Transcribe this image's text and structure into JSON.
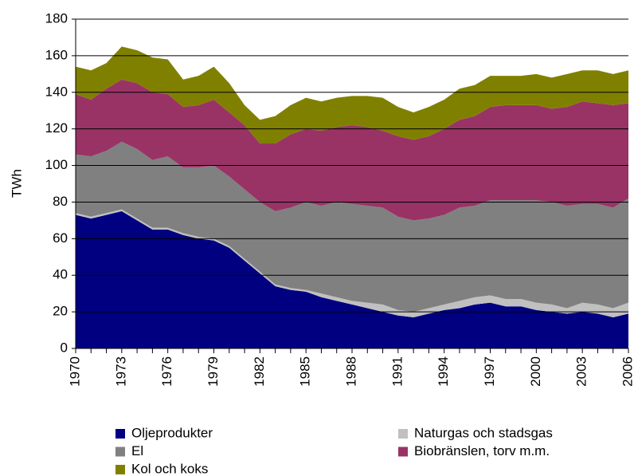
{
  "chart_data": {
    "type": "stacked-area",
    "y_label": "TWh",
    "x": [
      1970,
      1971,
      1972,
      1973,
      1974,
      1975,
      1976,
      1977,
      1978,
      1979,
      1980,
      1981,
      1982,
      1983,
      1984,
      1985,
      1986,
      1987,
      1988,
      1989,
      1990,
      1991,
      1992,
      1993,
      1994,
      1995,
      1996,
      1997,
      1998,
      1999,
      2000,
      2001,
      2002,
      2003,
      2004,
      2005,
      2006
    ],
    "xlim": [
      1970,
      2006
    ],
    "xticks": [
      1970,
      1973,
      1976,
      1979,
      1982,
      1985,
      1988,
      1991,
      1994,
      1997,
      2000,
      2003,
      2006
    ],
    "ylim": [
      0,
      180
    ],
    "yticks": [
      0,
      20,
      40,
      60,
      80,
      100,
      120,
      140,
      160,
      180
    ],
    "grid": true,
    "series": [
      {
        "name": "Oljeprodukter",
        "color": "#000080",
        "values": [
          73,
          71,
          73,
          75,
          70,
          65,
          65,
          62,
          60,
          59,
          55,
          48,
          41,
          34,
          32,
          31,
          28,
          26,
          24,
          22,
          20,
          18,
          17,
          19,
          21,
          22,
          24,
          25,
          23,
          23,
          21,
          20,
          19,
          20,
          19,
          17,
          19
        ]
      },
      {
        "name": "Naturgas och stadsgas",
        "color": "#c0c0c0",
        "values": [
          1,
          1,
          1,
          1,
          1,
          1,
          1,
          1,
          1,
          1,
          1,
          1,
          1,
          1,
          1,
          1,
          2,
          2,
          2,
          3,
          4,
          3,
          3,
          3,
          3,
          4,
          4,
          4,
          4,
          4,
          4,
          4,
          3,
          5,
          5,
          5,
          6
        ]
      },
      {
        "name": "El",
        "color": "#808080",
        "values": [
          32,
          33,
          34,
          37,
          38,
          37,
          39,
          36,
          38,
          40,
          38,
          38,
          38,
          40,
          44,
          48,
          48,
          52,
          53,
          53,
          53,
          51,
          50,
          49,
          49,
          51,
          50,
          52,
          54,
          54,
          56,
          56,
          56,
          54,
          55,
          55,
          57
        ]
      },
      {
        "name": "Biobränslen, torv m.m.",
        "color": "#993366",
        "values": [
          33,
          31,
          34,
          34,
          36,
          37,
          34,
          33,
          34,
          36,
          35,
          35,
          32,
          37,
          40,
          40,
          41,
          41,
          43,
          43,
          42,
          44,
          44,
          45,
          47,
          48,
          49,
          51,
          52,
          52,
          52,
          51,
          54,
          56,
          55,
          56,
          52
        ]
      },
      {
        "name": "Kol och koks",
        "color": "#808000",
        "values": [
          15,
          16,
          14,
          18,
          18,
          19,
          19,
          15,
          16,
          18,
          16,
          11,
          13,
          15,
          16,
          17,
          16,
          16,
          16,
          17,
          18,
          16,
          15,
          16,
          16,
          17,
          17,
          17,
          16,
          16,
          17,
          17,
          18,
          17,
          18,
          17,
          18
        ]
      }
    ]
  }
}
